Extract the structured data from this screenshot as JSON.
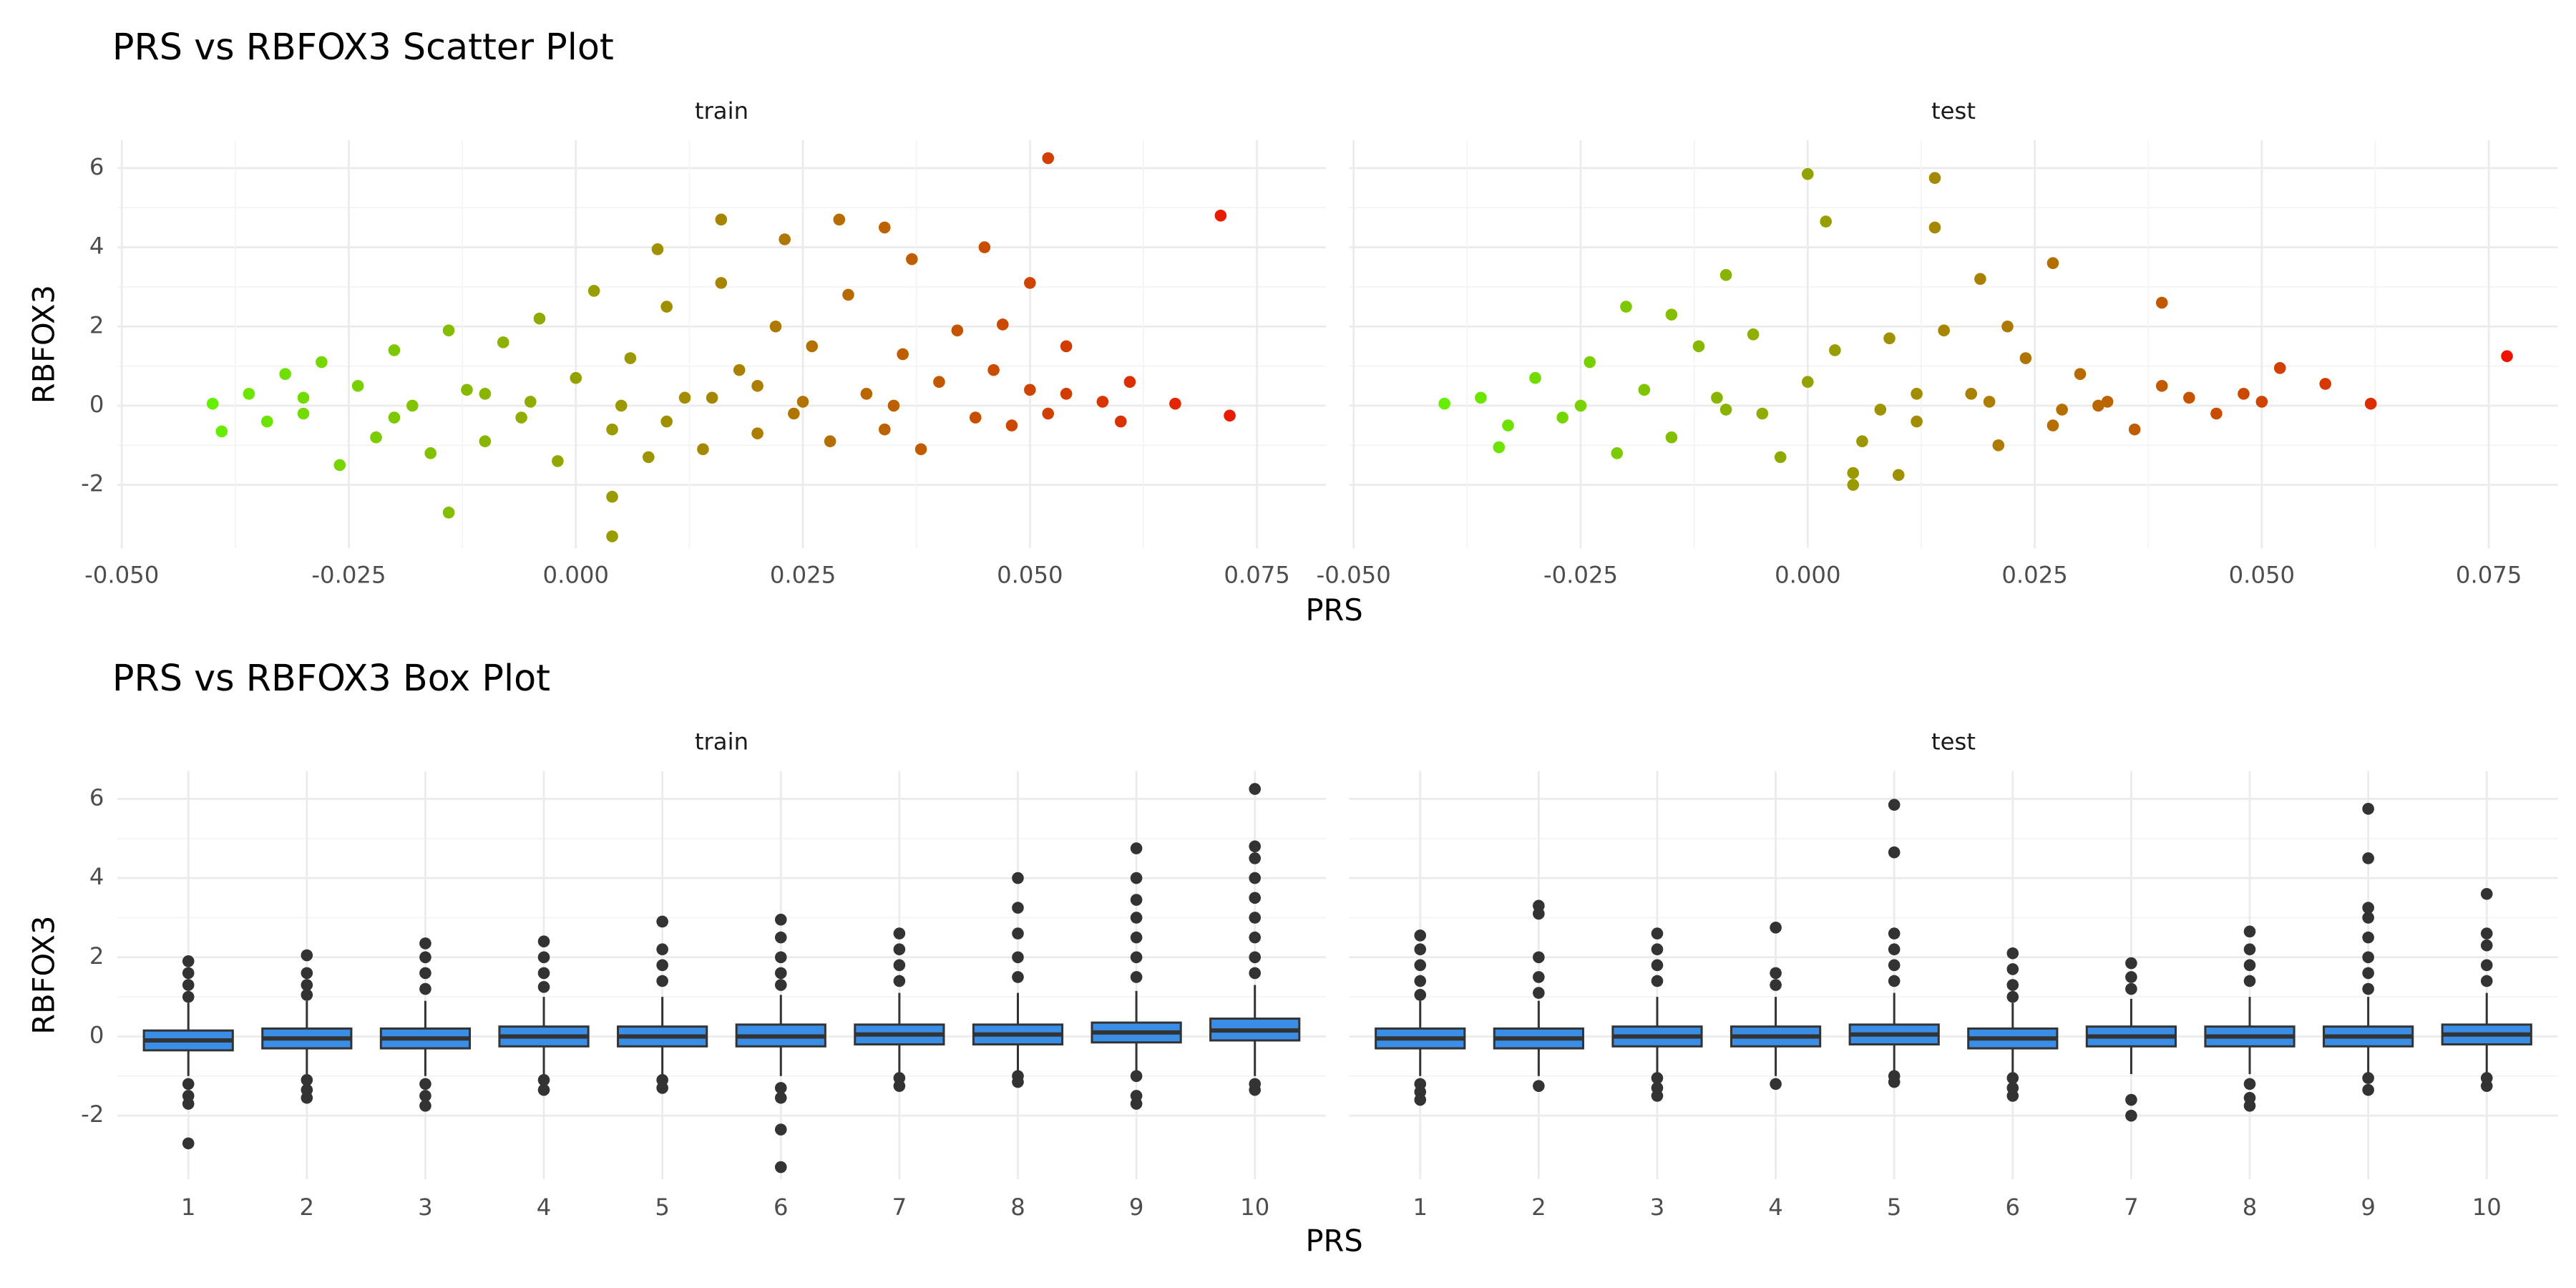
{
  "chart_data": [
    {
      "type": "scatter",
      "title": "PRS vs RBFOX3 Scatter Plot",
      "xlabel": "PRS",
      "ylabel": "RBFOX3",
      "xlim": [
        -0.0505,
        0.0826
      ],
      "xticks": [
        {
          "value": -0.05,
          "label": "-0.050"
        },
        {
          "value": -0.025,
          "label": "-0.025"
        },
        {
          "value": 0,
          "label": "0.000"
        },
        {
          "value": 0.025,
          "label": "0.025"
        },
        {
          "value": 0.05,
          "label": "0.050"
        },
        {
          "value": 0.075,
          "label": "0.075"
        }
      ],
      "ylim": [
        -3.6,
        6.7
      ],
      "yticks": [
        -2,
        0,
        2,
        4,
        6
      ],
      "grid": true,
      "color_range": [
        "#66ee00",
        "#ee1100"
      ],
      "panels": [
        {
          "name": "train",
          "x": [
            0.052,
            0.071,
            0.072,
            0.066,
            0.004,
            0.004,
            -0.014,
            0.045,
            0.034,
            0.016,
            0.029,
            0.009,
            -0.04,
            -0.039,
            0.061,
            0.05,
            0.047,
            0.054,
            0.037,
            0.023,
            -0.036,
            -0.034,
            -0.032,
            -0.03,
            -0.028,
            -0.026,
            -0.024,
            -0.022,
            -0.02,
            -0.018,
            -0.016,
            -0.014,
            -0.012,
            -0.01,
            -0.008,
            -0.006,
            -0.004,
            -0.002,
            0,
            0.002,
            0.004,
            0.006,
            0.008,
            0.01,
            0.012,
            0.014,
            0.016,
            0.018,
            0.02,
            0.022,
            0.024,
            0.026,
            0.028,
            0.03,
            0.032,
            0.034,
            0.036,
            0.038,
            0.04,
            0.042,
            0.044,
            0.046,
            0.048,
            0.05,
            0.052,
            0.054,
            0.058,
            0.06,
            -0.01,
            -0.005,
            0.005,
            0.015,
            0.025,
            0.035,
            -0.02,
            -0.03,
            0.01,
            0.02
          ],
          "y": [
            6.25,
            4.8,
            -0.25,
            0.05,
            -3.3,
            -2.3,
            -2.7,
            4.0,
            4.5,
            4.7,
            4.7,
            3.95,
            0.05,
            -0.65,
            0.6,
            3.1,
            2.05,
            1.5,
            3.7,
            4.2,
            0.3,
            -0.4,
            0.8,
            -0.2,
            1.1,
            -1.5,
            0.5,
            -0.8,
            1.4,
            0,
            -1.2,
            1.9,
            0.4,
            -0.9,
            1.6,
            -0.3,
            2.2,
            -1.4,
            0.7,
            2.9,
            -0.6,
            1.2,
            -1.3,
            2.5,
            0.2,
            -1.1,
            3.1,
            0.9,
            -0.7,
            2.0,
            -0.2,
            1.5,
            -0.9,
            2.8,
            0.3,
            -0.6,
            1.3,
            -1.1,
            0.6,
            1.9,
            -0.3,
            0.9,
            -0.5,
            0.4,
            -0.2,
            0.3,
            0.1,
            -0.4,
            0.3,
            0.1,
            0,
            0.2,
            0.1,
            0,
            -0.3,
            0.2,
            -0.4,
            0.5
          ]
        },
        {
          "name": "test",
          "x": [
            0,
            0.014,
            0.002,
            0.014,
            0.077,
            0.057,
            0.062,
            0.052,
            0.039,
            0.027,
            0.019,
            -0.009,
            -0.04,
            -0.034,
            0.005,
            0.005,
            -0.02,
            0.022,
            0.01,
            -0.015,
            -0.036,
            -0.033,
            -0.03,
            -0.027,
            -0.024,
            -0.021,
            -0.018,
            -0.015,
            -0.012,
            -0.009,
            -0.006,
            -0.003,
            0,
            0.003,
            0.006,
            0.009,
            0.012,
            0.015,
            0.018,
            0.021,
            0.024,
            0.027,
            0.03,
            0.033,
            0.036,
            0.039,
            0.042,
            0.045,
            0.048,
            0.05,
            -0.025,
            -0.01,
            0.008,
            0.02,
            0.032,
            -0.005,
            0.012,
            0.028
          ],
          "y": [
            5.85,
            5.75,
            4.65,
            4.5,
            1.25,
            0.55,
            0.05,
            0.95,
            2.6,
            3.6,
            3.2,
            3.3,
            0.05,
            -1.05,
            -2.0,
            -1.7,
            2.5,
            2.0,
            -1.75,
            2.3,
            0.2,
            -0.5,
            0.7,
            -0.3,
            1.1,
            -1.2,
            0.4,
            -0.8,
            1.5,
            -0.1,
            1.8,
            -1.3,
            0.6,
            1.4,
            -0.9,
            1.7,
            -0.4,
            1.9,
            0.3,
            -1.0,
            1.2,
            -0.5,
            0.8,
            0.1,
            -0.6,
            0.5,
            0.2,
            -0.2,
            0.3,
            0.1,
            0,
            0.2,
            -0.1,
            0.1,
            0,
            -0.2,
            0.3,
            -0.1
          ]
        }
      ]
    },
    {
      "type": "box",
      "title": "PRS vs RBFOX3 Box Plot",
      "xlabel": "PRS",
      "ylabel": "RBFOX3",
      "categories": [
        "1",
        "2",
        "3",
        "4",
        "5",
        "6",
        "7",
        "8",
        "9",
        "10"
      ],
      "ylim": [
        -3.6,
        6.7
      ],
      "yticks": [
        -2,
        0,
        2,
        4,
        6
      ],
      "grid": true,
      "box_color": "#3a8ee6",
      "line_color": "#333333",
      "panels": [
        {
          "name": "train",
          "boxes": [
            {
              "median": -0.1,
              "q1": -0.35,
              "q3": 0.15,
              "whisker_low": -1.0,
              "whisker_high": 0.85,
              "outliers": [
                1.9,
                1.6,
                1.3,
                1.0,
                -1.2,
                -1.5,
                -1.7,
                -2.7
              ]
            },
            {
              "median": -0.05,
              "q1": -0.3,
              "q3": 0.2,
              "whisker_low": -0.95,
              "whisker_high": 0.9,
              "outliers": [
                2.05,
                1.6,
                1.3,
                1.05,
                -1.1,
                -1.35,
                -1.55
              ]
            },
            {
              "median": -0.05,
              "q1": -0.3,
              "q3": 0.2,
              "whisker_low": -1.0,
              "whisker_high": 0.9,
              "outliers": [
                2.35,
                2.0,
                1.6,
                1.2,
                -1.2,
                -1.5,
                -1.75
              ]
            },
            {
              "median": 0,
              "q1": -0.25,
              "q3": 0.25,
              "whisker_low": -1.0,
              "whisker_high": 1.0,
              "outliers": [
                2.4,
                2.0,
                1.6,
                1.25,
                -1.1,
                -1.35
              ]
            },
            {
              "median": 0,
              "q1": -0.25,
              "q3": 0.25,
              "whisker_low": -1.0,
              "whisker_high": 1.0,
              "outliers": [
                2.9,
                2.2,
                1.8,
                1.4,
                -1.1,
                -1.3
              ]
            },
            {
              "median": 0,
              "q1": -0.25,
              "q3": 0.3,
              "whisker_low": -1.0,
              "whisker_high": 1.05,
              "outliers": [
                2.95,
                2.5,
                2.0,
                1.6,
                1.3,
                -1.3,
                -1.55,
                -2.35,
                -3.3
              ]
            },
            {
              "median": 0.05,
              "q1": -0.2,
              "q3": 0.3,
              "whisker_low": -0.95,
              "whisker_high": 1.1,
              "outliers": [
                2.6,
                2.2,
                1.8,
                1.4,
                -1.05,
                -1.25
              ]
            },
            {
              "median": 0.05,
              "q1": -0.2,
              "q3": 0.3,
              "whisker_low": -0.95,
              "whisker_high": 1.1,
              "outliers": [
                4.0,
                3.25,
                2.6,
                2.0,
                1.5,
                -1.0,
                -1.15
              ]
            },
            {
              "median": 0.1,
              "q1": -0.15,
              "q3": 0.35,
              "whisker_low": -0.95,
              "whisker_high": 1.15,
              "outliers": [
                4.75,
                4.0,
                3.45,
                3.0,
                2.5,
                2.0,
                1.5,
                -1.0,
                -1.5,
                -1.7
              ]
            },
            {
              "median": 0.15,
              "q1": -0.1,
              "q3": 0.45,
              "whisker_low": -1.0,
              "whisker_high": 1.3,
              "outliers": [
                6.25,
                4.8,
                4.5,
                4.0,
                3.5,
                3.0,
                2.5,
                2.0,
                1.6,
                -1.2,
                -1.35
              ]
            }
          ]
        },
        {
          "name": "test",
          "boxes": [
            {
              "median": -0.05,
              "q1": -0.3,
              "q3": 0.2,
              "whisker_low": -1.0,
              "whisker_high": 0.9,
              "outliers": [
                2.55,
                2.2,
                1.8,
                1.4,
                1.05,
                -1.2,
                -1.4,
                -1.6
              ]
            },
            {
              "median": -0.05,
              "q1": -0.3,
              "q3": 0.2,
              "whisker_low": -1.0,
              "whisker_high": 0.9,
              "outliers": [
                3.3,
                3.1,
                2.0,
                1.5,
                1.1,
                -1.25
              ]
            },
            {
              "median": 0,
              "q1": -0.25,
              "q3": 0.25,
              "whisker_low": -1.0,
              "whisker_high": 1.0,
              "outliers": [
                2.6,
                2.2,
                1.8,
                1.4,
                -1.05,
                -1.3,
                -1.5
              ]
            },
            {
              "median": 0,
              "q1": -0.25,
              "q3": 0.25,
              "whisker_low": -1.0,
              "whisker_high": 1.0,
              "outliers": [
                2.75,
                1.6,
                1.3,
                -1.2
              ]
            },
            {
              "median": 0.05,
              "q1": -0.2,
              "q3": 0.3,
              "whisker_low": -0.9,
              "whisker_high": 1.1,
              "outliers": [
                5.85,
                4.65,
                2.6,
                2.2,
                1.8,
                1.4,
                -1.0,
                -1.15
              ]
            },
            {
              "median": -0.05,
              "q1": -0.3,
              "q3": 0.2,
              "whisker_low": -0.95,
              "whisker_high": 0.85,
              "outliers": [
                2.1,
                1.7,
                1.3,
                1.0,
                -1.05,
                -1.3,
                -1.5
              ]
            },
            {
              "median": 0,
              "q1": -0.25,
              "q3": 0.25,
              "whisker_low": -0.95,
              "whisker_high": 0.95,
              "outliers": [
                1.85,
                1.5,
                1.2,
                -1.6,
                -2.0
              ]
            },
            {
              "median": 0,
              "q1": -0.25,
              "q3": 0.25,
              "whisker_low": -0.95,
              "whisker_high": 1.0,
              "outliers": [
                2.65,
                2.2,
                1.8,
                1.4,
                -1.2,
                -1.55,
                -1.75
              ]
            },
            {
              "median": 0,
              "q1": -0.25,
              "q3": 0.25,
              "whisker_low": -0.95,
              "whisker_high": 1.0,
              "outliers": [
                5.75,
                4.5,
                3.25,
                3.0,
                2.5,
                2.0,
                1.6,
                1.2,
                -1.05,
                -1.35
              ]
            },
            {
              "median": 0.05,
              "q1": -0.2,
              "q3": 0.3,
              "whisker_low": -0.95,
              "whisker_high": 1.1,
              "outliers": [
                3.6,
                2.6,
                2.3,
                1.8,
                1.4,
                -1.05,
                -1.25
              ]
            }
          ]
        }
      ]
    }
  ]
}
